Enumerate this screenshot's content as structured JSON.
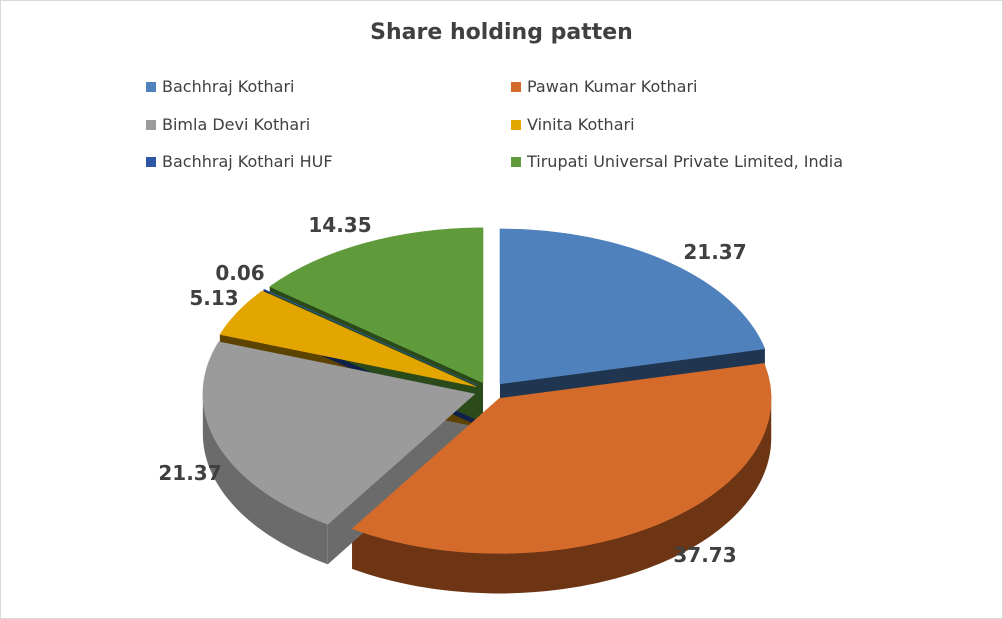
{
  "chart_data": {
    "type": "pie",
    "title": "Share holding patten",
    "legend_position": "top",
    "slices": [
      {
        "label": "Bachhraj Kothari",
        "value": 21.37,
        "value_label": "21.37",
        "color": "#4f81bd",
        "side_color": "#1f3550"
      },
      {
        "label": "Pawan Kumar Kothari",
        "value": 37.73,
        "value_label": "37.73",
        "color": "#d46b2a",
        "side_color": "#6e3514"
      },
      {
        "label": "Bimla Devi Kothari",
        "value": 21.37,
        "value_label": "21.37",
        "color": "#9b9b9b",
        "side_color": "#6b6b6b"
      },
      {
        "label": "Vinita Kothari",
        "value": 5.13,
        "value_label": "5.13",
        "color": "#e3a500",
        "side_color": "#5d4300"
      },
      {
        "label": "Bachhraj Kothari HUF",
        "value": 0.06,
        "value_label": "0.06",
        "color": "#2e57a6",
        "side_color": "#0f2148"
      },
      {
        "label": "Tirupati Universal Private Limited, India",
        "value": 14.35,
        "value_label": "14.35",
        "color": "#5f9a3b",
        "side_color": "#2a4a1a"
      }
    ]
  }
}
